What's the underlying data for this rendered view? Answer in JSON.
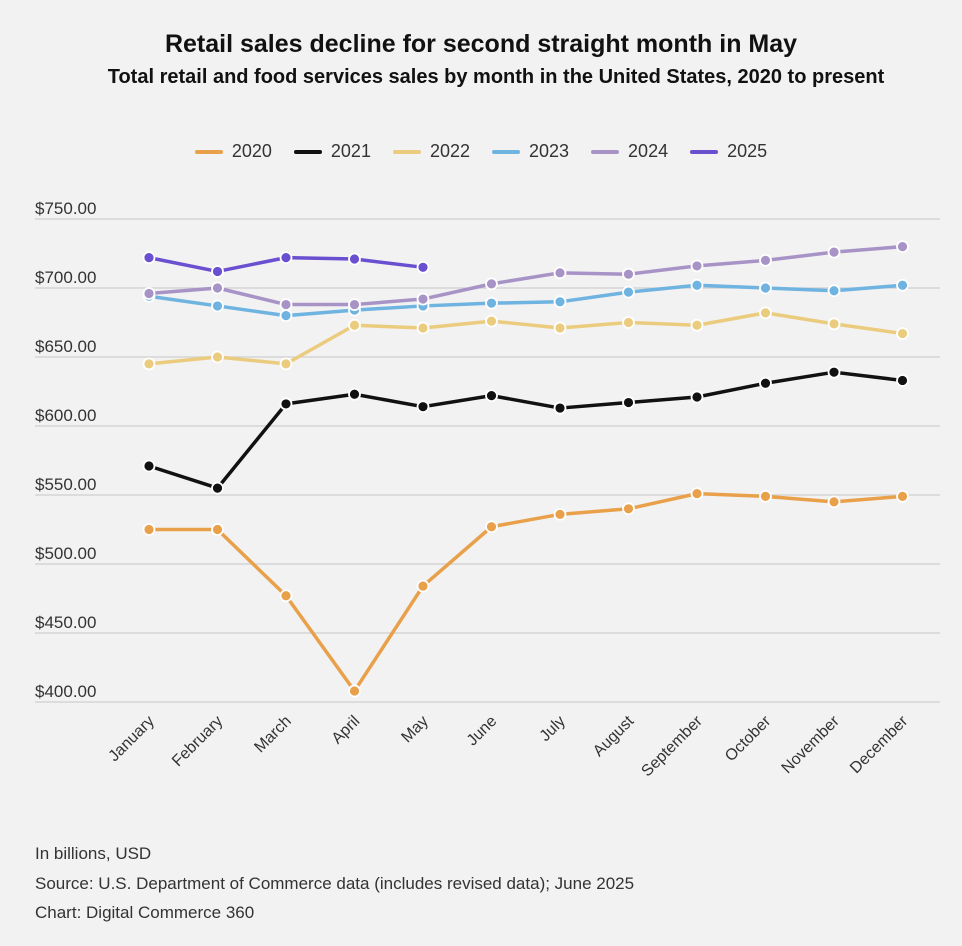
{
  "chart_data": {
    "type": "line",
    "title": "Retail sales decline for second straight month in May",
    "subtitle": "Total retail and food services sales by month in the United States, 2020 to present",
    "categories": [
      "January",
      "February",
      "March",
      "April",
      "May",
      "June",
      "July",
      "August",
      "September",
      "October",
      "November",
      "December"
    ],
    "y_ticks": [
      "$750.00",
      "$700.00",
      "$650.00",
      "$600.00",
      "$550.00",
      "$500.00",
      "$450.00",
      "$400.00"
    ],
    "ylim": [
      400,
      750
    ],
    "legend_position": "top-center",
    "series": [
      {
        "name": "2020",
        "color": "#e9a04a",
        "values": [
          525,
          525,
          477,
          408,
          484,
          527,
          536,
          540,
          551,
          549,
          545,
          549
        ]
      },
      {
        "name": "2021",
        "color": "#111111",
        "values": [
          571,
          555,
          616,
          623,
          614,
          622,
          613,
          617,
          621,
          631,
          639,
          633
        ]
      },
      {
        "name": "2022",
        "color": "#ebcc7e",
        "values": [
          645,
          650,
          645,
          673,
          671,
          676,
          671,
          675,
          673,
          682,
          674,
          667
        ]
      },
      {
        "name": "2023",
        "color": "#6fb3e0",
        "values": [
          694,
          687,
          680,
          684,
          687,
          689,
          690,
          697,
          702,
          700,
          698,
          702
        ]
      },
      {
        "name": "2024",
        "color": "#a893c7",
        "values": [
          696,
          700,
          688,
          688,
          692,
          703,
          711,
          710,
          716,
          720,
          726,
          730
        ]
      },
      {
        "name": "2025",
        "color": "#6a4fd0",
        "values": [
          722,
          712,
          722,
          721,
          715,
          null,
          null,
          null,
          null,
          null,
          null,
          null
        ]
      }
    ]
  },
  "footer": {
    "units": "In billions, USD",
    "source": "Source: U.S. Department of Commerce data (includes revised data); June 2025",
    "credit": "Chart: Digital Commerce 360"
  }
}
